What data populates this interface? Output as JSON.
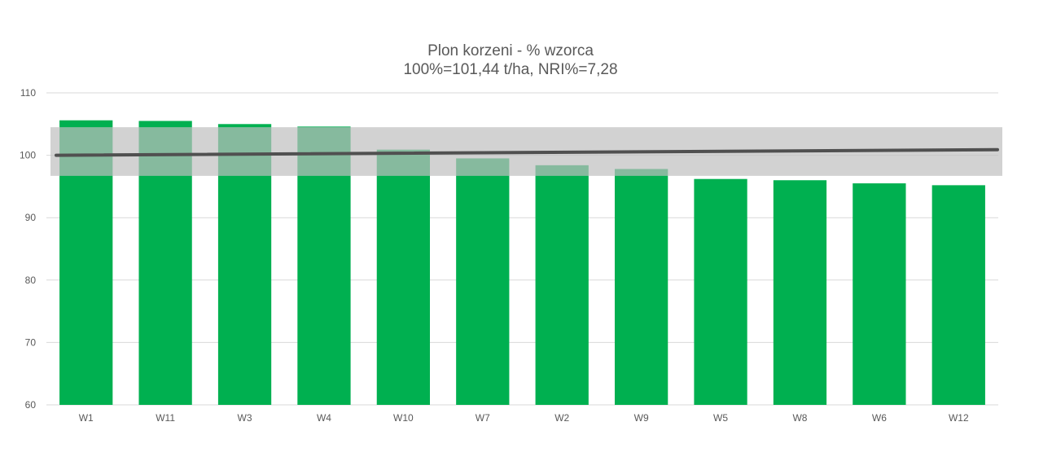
{
  "chart_data": {
    "type": "bar",
    "title": "Plon korzeni - % wzorca",
    "subtitle": "100%=101,44 t/ha, NRI%=7,28",
    "categories": [
      "W1",
      "W11",
      "W3",
      "W4",
      "W10",
      "W7",
      "W2",
      "W9",
      "W5",
      "W8",
      "W6",
      "W12"
    ],
    "values": [
      105.6,
      105.5,
      105.0,
      104.6,
      100.9,
      99.5,
      98.4,
      97.8,
      96.2,
      96.0,
      95.5,
      95.2
    ],
    "ylim": [
      60,
      110
    ],
    "yticks": [
      60,
      70,
      80,
      90,
      100,
      110
    ],
    "band": [
      96.7,
      104.5
    ],
    "trend": [
      100.0,
      100.9
    ],
    "grid": true,
    "colors": {
      "bar": "#00b050",
      "band": "#bfbfbf",
      "trend": "#505050",
      "grid": "#d9d9d9",
      "text": "#595959"
    }
  }
}
